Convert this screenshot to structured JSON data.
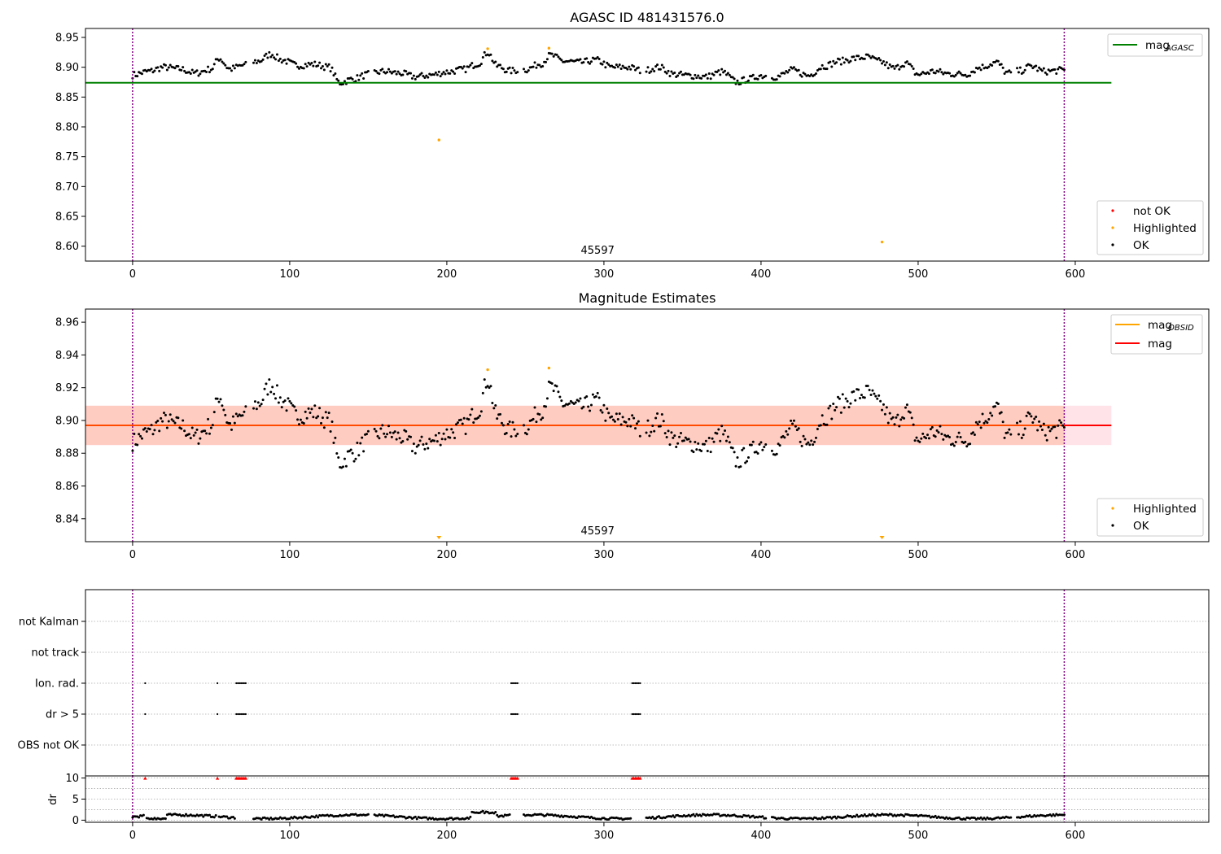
{
  "colors": {
    "ok": "#000000",
    "not_ok": "#ff0000",
    "highlighted": "#ffa500",
    "mag_agasc": "#008000",
    "mag_obsid": "#ffa500",
    "mag": "#ff0000",
    "band_outer": "#ffc0cb",
    "band_inner": "#ffa07a",
    "obs_boundary": "#800080"
  },
  "chart_data": [
    {
      "type": "scatter",
      "title": "AGASC ID 481431576.0",
      "xlim": [
        -30,
        685
      ],
      "ylim": [
        8.575,
        8.965
      ],
      "xticks": [
        0,
        100,
        200,
        300,
        400,
        500,
        600
      ],
      "yticks": [
        "8.60",
        "8.65",
        "8.70",
        "8.75",
        "8.80",
        "8.85",
        "8.90",
        "8.95"
      ],
      "obsid_label": "45597",
      "obs_boundaries": [
        0,
        593
      ],
      "mag_agasc": {
        "value": 8.874,
        "x_range": [
          -30,
          623
        ]
      },
      "legend_top": {
        "mag_label": "mag",
        "mag_sub": "AGASC"
      },
      "legend_bottom": [
        "not OK",
        "Highlighted",
        "OK"
      ],
      "highlighted_points": [
        [
          195,
          8.778
        ],
        [
          226,
          8.931
        ],
        [
          265,
          8.932
        ],
        [
          477,
          8.607
        ]
      ],
      "baseline": 8.897,
      "amplitude": 1.0
    },
    {
      "type": "scatter",
      "title": "Magnitude Estimates",
      "xlim": [
        -30,
        685
      ],
      "ylim": [
        8.826,
        8.968
      ],
      "xticks": [
        0,
        100,
        200,
        300,
        400,
        500,
        600
      ],
      "yticks": [
        "8.84",
        "8.86",
        "8.88",
        "8.90",
        "8.92",
        "8.94",
        "8.96"
      ],
      "obsid_label": "45597",
      "obs_boundaries": [
        0,
        593
      ],
      "mag": {
        "value": 8.897,
        "x_range": [
          -30,
          623
        ]
      },
      "band_outer": [
        8.885,
        8.909
      ],
      "band_inner": [
        8.885,
        8.909
      ],
      "band_inner_x": [
        -30,
        593
      ],
      "legend_top": [
        {
          "label": "mag",
          "sub": "OBSID"
        },
        {
          "label": "mag",
          "sub": ""
        }
      ],
      "legend_bottom": [
        "Highlighted",
        "OK"
      ],
      "highlighted_points": [
        [
          226,
          8.931
        ],
        [
          265,
          8.932
        ]
      ],
      "offscale_markers": [
        195,
        477
      ],
      "baseline": 8.897,
      "amplitude": 1.0
    },
    {
      "type": "scatter",
      "title": "",
      "xlim": [
        -30,
        685
      ],
      "xticks": [
        0,
        100,
        200,
        300,
        400,
        500,
        600
      ],
      "flag_categories": [
        "not Kalman",
        "not track",
        "Ion. rad.",
        "dr > 5",
        "OBS not OK"
      ],
      "flag_points": {
        "Ion. rad.": [
          8,
          54,
          66,
          67,
          68,
          69,
          70,
          71,
          72,
          241,
          242,
          243,
          244,
          245,
          318,
          319,
          320,
          321,
          322,
          323
        ],
        "dr > 5": [
          8,
          54,
          66,
          67,
          68,
          69,
          70,
          71,
          72,
          241,
          242,
          243,
          244,
          245,
          318,
          319,
          320,
          321,
          322,
          323
        ]
      },
      "obs_boundaries": [
        0,
        593
      ]
    },
    {
      "type": "scatter",
      "title": "",
      "ylabel": "dr",
      "xlim": [
        -30,
        685
      ],
      "ylim": [
        -0.5,
        10.5
      ],
      "xticks": [
        0,
        100,
        200,
        300,
        400,
        500,
        600
      ],
      "yticks": [
        "0",
        "5",
        "10"
      ],
      "clipped_points": [
        8,
        54,
        66,
        67,
        68,
        69,
        70,
        71,
        72,
        241,
        242,
        243,
        244,
        245,
        318,
        319,
        320,
        321,
        322,
        323
      ],
      "obs_boundaries": [
        0,
        593
      ]
    }
  ]
}
